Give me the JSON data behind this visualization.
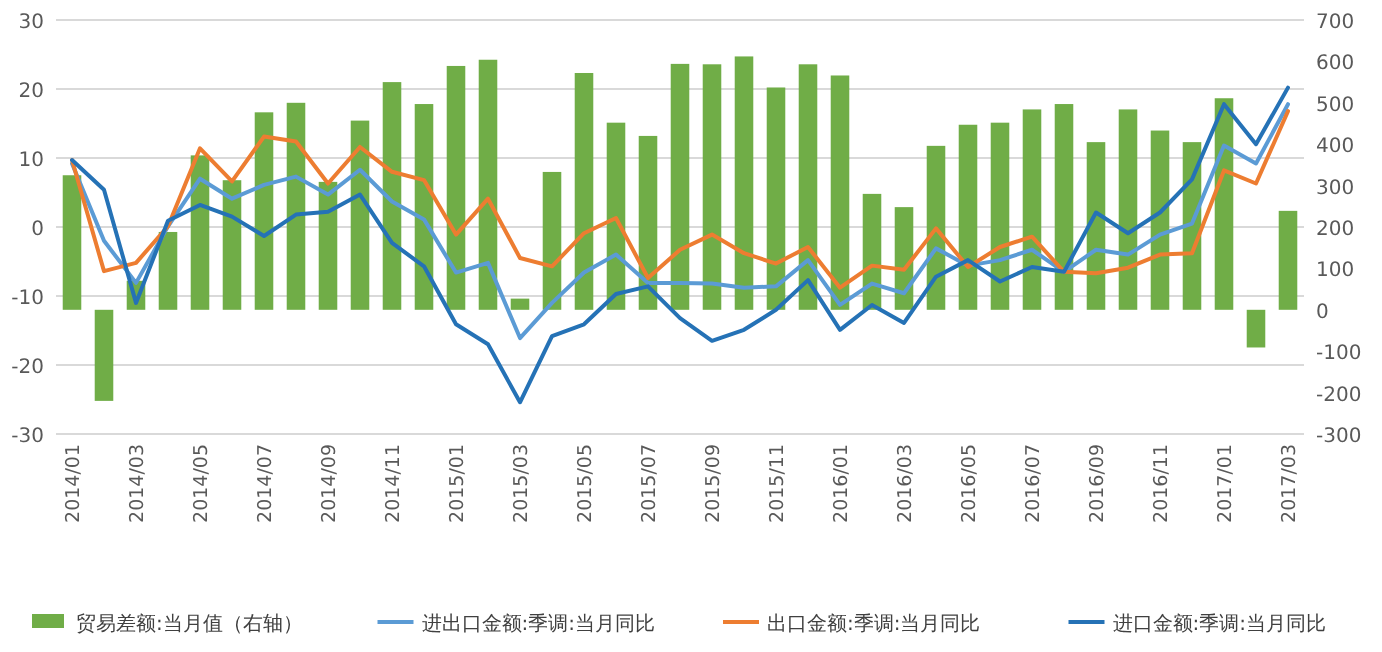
{
  "chart_data": {
    "type": "bar",
    "categories": [
      "2014/01",
      null,
      "2014/03",
      null,
      "2014/05",
      null,
      "2014/07",
      null,
      "2014/09",
      null,
      "2014/11",
      null,
      "2015/01",
      null,
      "2015/03",
      null,
      "2015/05",
      null,
      "2015/07",
      null,
      "2015/09",
      null,
      "2015/11",
      null,
      "2016/01",
      null,
      "2016/03",
      null,
      "2016/05",
      null,
      "2016/07",
      null,
      "2016/09",
      null,
      "2016/11",
      null,
      "2017/01",
      null,
      "2017/03"
    ],
    "series": [
      {
        "name": "贸易差额:当月值（右轴）",
        "axis": "y2",
        "color": "#70ad47",
        "values": [
          325,
          -220,
          70,
          188,
          373,
          313,
          477,
          500,
          309,
          457,
          550,
          497,
          589,
          604,
          27,
          333,
          572,
          452,
          420,
          594,
          593,
          612,
          537,
          593,
          566,
          280,
          248,
          396,
          447,
          452,
          484,
          497,
          405,
          484,
          433,
          405,
          511,
          -91,
          239
        ]
      },
      {
        "name": "进出口金额:季调:当月同比",
        "type": "line",
        "color": "#5b9bd5",
        "values": [
          9.2,
          -2,
          -8.1,
          0.1,
          7.0,
          4.1,
          6.1,
          7.3,
          4.7,
          8.3,
          3.7,
          1.1,
          -6.6,
          -5.2,
          -16.1,
          -11.0,
          -6.6,
          -4.0,
          -8.1,
          -8.1,
          -8.2,
          -8.8,
          -8.6,
          -4.8,
          -11.3,
          -8.2,
          -9.6,
          -3.1,
          -5.6,
          -4.8,
          -3.3,
          -6.5,
          -3.3,
          -4.0,
          -1.1,
          0.5,
          11.8,
          9.2,
          17.8
        ]
      },
      {
        "name": "出口金额:季调:当月同比",
        "type": "line",
        "color": "#ed7d31",
        "values": [
          9.7,
          -6.4,
          -5.2,
          0.1,
          11.4,
          6.6,
          13.1,
          12.4,
          6.3,
          11.6,
          8.0,
          6.8,
          -1.1,
          4.1,
          -4.5,
          -5.7,
          -0.9,
          1.3,
          -7.4,
          -3.3,
          -1.1,
          -3.8,
          -5.3,
          -2.9,
          -8.8,
          -5.6,
          -6.2,
          -0.2,
          -5.8,
          -2.9,
          -1.4,
          -6.5,
          -6.7,
          -5.9,
          -4.0,
          -3.8,
          8.2,
          6.3,
          16.8
        ]
      },
      {
        "name": "进口金额:季调:当月同比",
        "type": "line",
        "color": "#2572b6",
        "values": [
          9.7,
          5.4,
          -11.0,
          0.9,
          3.2,
          1.5,
          -1.3,
          1.8,
          2.2,
          4.7,
          -2.3,
          -5.7,
          -14.1,
          -17.0,
          -25.4,
          -15.8,
          -14.1,
          -9.7,
          -8.6,
          -13.2,
          -16.5,
          -14.9,
          -12,
          -7.7,
          -14.9,
          -11.3,
          -13.9,
          -7.2,
          -4.8,
          -7.9,
          -5.8,
          -6.5,
          2.1,
          -0.9,
          2.1,
          6.9,
          17.8,
          12.0,
          20.2
        ]
      }
    ],
    "ylim": [
      -30,
      30
    ],
    "yticks": [
      -30,
      -20,
      -10,
      0,
      10,
      20,
      30
    ],
    "y2lim": [
      -300,
      700
    ],
    "y2ticks": [
      -300,
      -200,
      -100,
      0,
      100,
      200,
      300,
      400,
      500,
      600,
      700
    ],
    "grid": "y",
    "legend": "bottom"
  }
}
